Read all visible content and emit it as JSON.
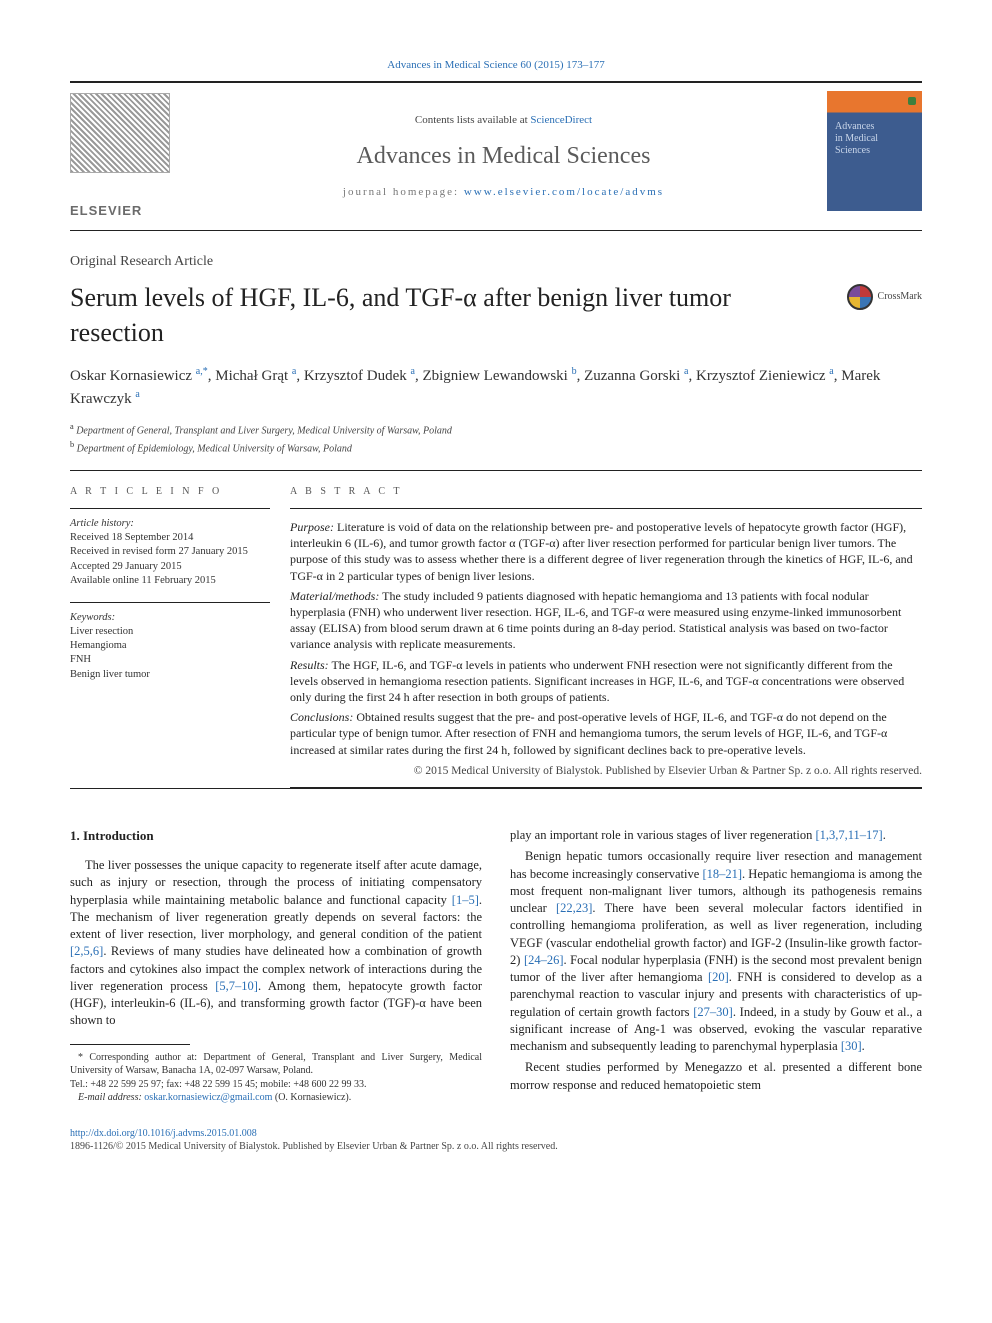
{
  "header": {
    "citation_journal_link": "Advances in Medical Science",
    "citation_rest": " 60 (2015) 173–177",
    "contents_prefix": "Contents lists available at ",
    "contents_link": "ScienceDirect",
    "journal_title": "Advances in Medical Sciences",
    "homepage_prefix": "journal homepage: ",
    "homepage_link": "www.elsevier.com/locate/advms",
    "publisher": "ELSEVIER",
    "cover_text": "Advances\nin Medical\nSciences"
  },
  "article": {
    "type": "Original Research Article",
    "title": "Serum levels of HGF, IL-6, and TGF-α after benign liver tumor resection",
    "crossmark_label": "CrossMark",
    "authors_html": "Oskar Kornasiewicz <sup>a,*</sup>, Michał Grąt <sup>a</sup>, Krzysztof Dudek <sup>a</sup>, Zbigniew Lewandowski <sup>b</sup>, Zuzanna Gorski <sup>a</sup>, Krzysztof Zieniewicz <sup>a</sup>, Marek Krawczyk <sup>a</sup>",
    "affiliations": [
      {
        "key": "a",
        "text": "Department of General, Transplant and Liver Surgery, Medical University of Warsaw, Poland"
      },
      {
        "key": "b",
        "text": "Department of Epidemiology, Medical University of Warsaw, Poland"
      }
    ]
  },
  "info": {
    "label": "A R T I C L E   I N F O",
    "history_head": "Article history:",
    "history": [
      "Received 18 September 2014",
      "Received in revised form 27 January 2015",
      "Accepted 29 January 2015",
      "Available online 11 February 2015"
    ],
    "keywords_head": "Keywords:",
    "keywords": [
      "Liver resection",
      "Hemangioma",
      "FNH",
      "Benign liver tumor"
    ]
  },
  "abstract": {
    "label": "A B S T R A C T",
    "sections": [
      {
        "head": "Purpose:",
        "text": " Literature is void of data on the relationship between pre- and postoperative levels of hepatocyte growth factor (HGF), interleukin 6 (IL-6), and tumor growth factor α (TGF-α) after liver resection performed for particular benign liver tumors. The purpose of this study was to assess whether there is a different degree of liver regeneration through the kinetics of HGF, IL-6, and TGF-α in 2 particular types of benign liver lesions."
      },
      {
        "head": "Material/methods:",
        "text": " The study included 9 patients diagnosed with hepatic hemangioma and 13 patients with focal nodular hyperplasia (FNH) who underwent liver resection. HGF, IL-6, and TGF-α were measured using enzyme-linked immunosorbent assay (ELISA) from blood serum drawn at 6 time points during an 8-day period. Statistical analysis was based on two-factor variance analysis with replicate measurements."
      },
      {
        "head": "Results:",
        "text": " The HGF, IL-6, and TGF-α levels in patients who underwent FNH resection were not significantly different from the levels observed in hemangioma resection patients. Significant increases in HGF, IL-6, and TGF-α concentrations were observed only during the first 24 h after resection in both groups of patients."
      },
      {
        "head": "Conclusions:",
        "text": " Obtained results suggest that the pre- and post-operative levels of HGF, IL-6, and TGF-α do not depend on the particular type of benign tumor. After resection of FNH and hemangioma tumors, the serum levels of HGF, IL-6, and TGF-α increased at similar rates during the first 24 h, followed by significant declines back to pre-operative levels."
      }
    ],
    "copyright": "© 2015 Medical University of Bialystok. Published by Elsevier Urban & Partner Sp. z o.o. All rights reserved."
  },
  "body": {
    "intro_heading": "1. Introduction",
    "left_paras": [
      "The liver possesses the unique capacity to regenerate itself after acute damage, such as injury or resection, through the process of initiating compensatory hyperplasia while maintaining metabolic balance and functional capacity <a class=\"ref\" href=\"#\">[1–5]</a>. The mechanism of liver regeneration greatly depends on several factors: the extent of liver resection, liver morphology, and general condition of the patient <a class=\"ref\" href=\"#\">[2,5,6]</a>. Reviews of many studies have delineated how a combination of growth factors and cytokines also impact the complex network of interactions during the liver regeneration process <a class=\"ref\" href=\"#\">[5,7–10]</a>. Among them, hepatocyte growth factor (HGF), interleukin-6 (IL-6), and transforming growth factor (TGF)-α have been shown to"
    ],
    "right_paras": [
      "play an important role in various stages of liver regeneration <a class=\"ref\" href=\"#\">[1,3,7,11–17]</a>.",
      "Benign hepatic tumors occasionally require liver resection and management has become increasingly conservative <a class=\"ref\" href=\"#\">[18–21]</a>. Hepatic hemangioma is among the most frequent non-malignant liver tumors, although its pathogenesis remains unclear <a class=\"ref\" href=\"#\">[22,23]</a>. There have been several molecular factors identified in controlling hemangioma proliferation, as well as liver regeneration, including VEGF (vascular endothelial growth factor) and IGF-2 (Insulin-like growth factor-2) <a class=\"ref\" href=\"#\">[24–26]</a>. Focal nodular hyperplasia (FNH) is the second most prevalent benign tumor of the liver after hemangioma <a class=\"ref\" href=\"#\">[20]</a>. FNH is considered to develop as a parenchymal reaction to vascular injury and presents with characteristics of up-regulation of certain growth factors <a class=\"ref\" href=\"#\">[27–30]</a>. Indeed, in a study by Gouw et al., a significant increase of Ang-1 was observed, evoking the vascular reparative mechanism and subsequently leading to parenchymal hyperplasia <a class=\"ref\" href=\"#\">[30]</a>.",
      "Recent studies performed by Menegazzo et al. presented a different bone morrow response and reduced hematopoietic stem"
    ]
  },
  "footnotes": {
    "corr": "* Corresponding author at: Department of General, Transplant and Liver Surgery, Medical University of Warsaw, Banacha 1A, 02-097 Warsaw, Poland.",
    "tel": "Tel.: +48 22 599 25 97; fax: +48 22 599 15 45; mobile: +48 600 22 99 33.",
    "email_label": "E-mail address: ",
    "email": "oskar.kornasiewicz@gmail.com",
    "email_suffix": " (O. Kornasiewicz)."
  },
  "footer": {
    "doi": "http://dx.doi.org/10.1016/j.advms.2015.01.008",
    "issn_line": "1896-1126/© 2015 Medical University of Bialystok. Published by Elsevier Urban & Partner Sp. z o.o. All rights reserved."
  },
  "colors": {
    "link": "#2a6fb5",
    "text": "#222222",
    "header_orange": "#e8762e",
    "header_blue": "#3d5c8f"
  }
}
